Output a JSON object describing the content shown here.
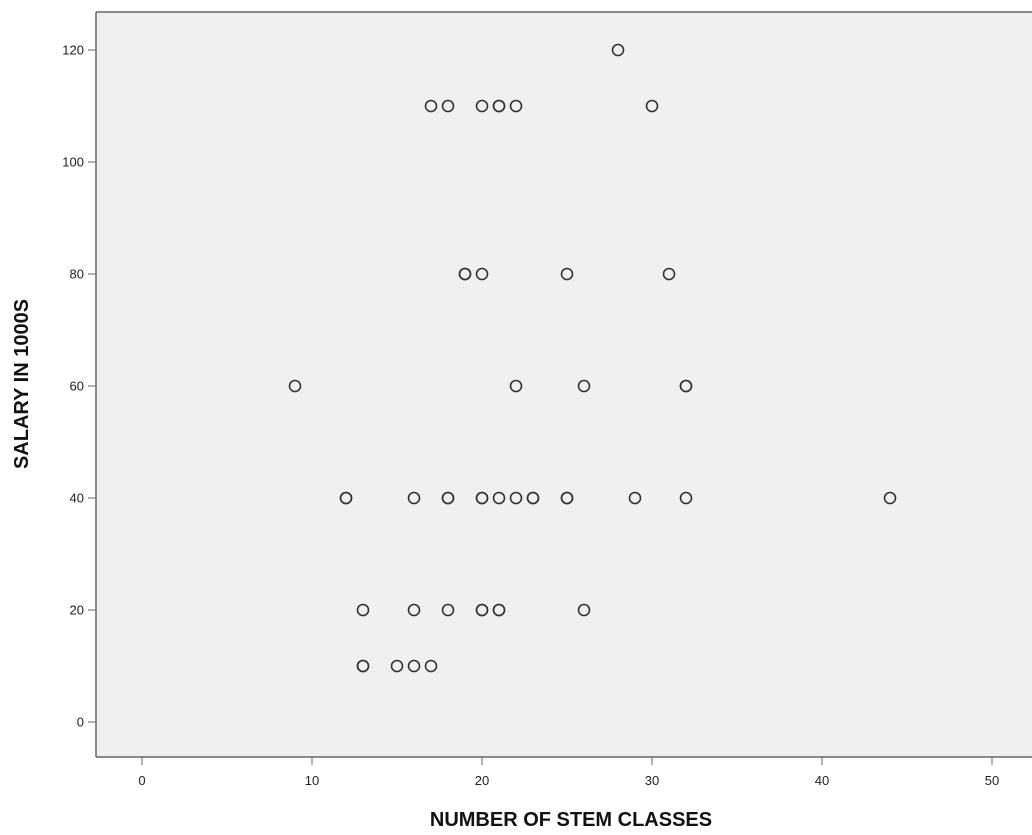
{
  "chart_data": {
    "type": "scatter",
    "title": "",
    "xlabel": "NUMBER OF STEM CLASSES",
    "ylabel": "SALARY IN 1000S",
    "xlim": [
      -2.5,
      52
    ],
    "ylim": [
      -7,
      127
    ],
    "xticks": [
      0,
      10,
      20,
      30,
      40,
      50
    ],
    "yticks": [
      0,
      20,
      40,
      60,
      80,
      100,
      120
    ],
    "grid": false,
    "legend": "none",
    "colors": {
      "plot_background": "#f0f0f0",
      "marker_stroke": "#333333",
      "frame": "#666666"
    },
    "series": [
      {
        "points": [
          [
            28,
            120
          ],
          [
            17,
            110
          ],
          [
            18,
            110
          ],
          [
            20,
            110
          ],
          [
            21,
            110
          ],
          [
            21,
            110
          ],
          [
            22,
            110
          ],
          [
            30,
            110
          ],
          [
            19,
            80
          ],
          [
            19,
            80
          ],
          [
            20,
            80
          ],
          [
            25,
            80
          ],
          [
            31,
            80
          ],
          [
            9,
            60
          ],
          [
            22,
            60
          ],
          [
            26,
            60
          ],
          [
            32,
            60
          ],
          [
            32,
            60
          ],
          [
            12,
            40
          ],
          [
            12,
            40
          ],
          [
            16,
            40
          ],
          [
            18,
            40
          ],
          [
            18,
            40
          ],
          [
            20,
            40
          ],
          [
            20,
            40
          ],
          [
            21,
            40
          ],
          [
            22,
            40
          ],
          [
            23,
            40
          ],
          [
            23,
            40
          ],
          [
            25,
            40
          ],
          [
            25,
            40
          ],
          [
            29,
            40
          ],
          [
            32,
            40
          ],
          [
            44,
            40
          ],
          [
            13,
            20
          ],
          [
            16,
            20
          ],
          [
            18,
            20
          ],
          [
            20,
            20
          ],
          [
            20,
            20
          ],
          [
            21,
            20
          ],
          [
            21,
            20
          ],
          [
            26,
            20
          ],
          [
            13,
            10
          ],
          [
            13,
            10
          ],
          [
            15,
            10
          ],
          [
            16,
            10
          ],
          [
            17,
            10
          ]
        ]
      }
    ]
  }
}
